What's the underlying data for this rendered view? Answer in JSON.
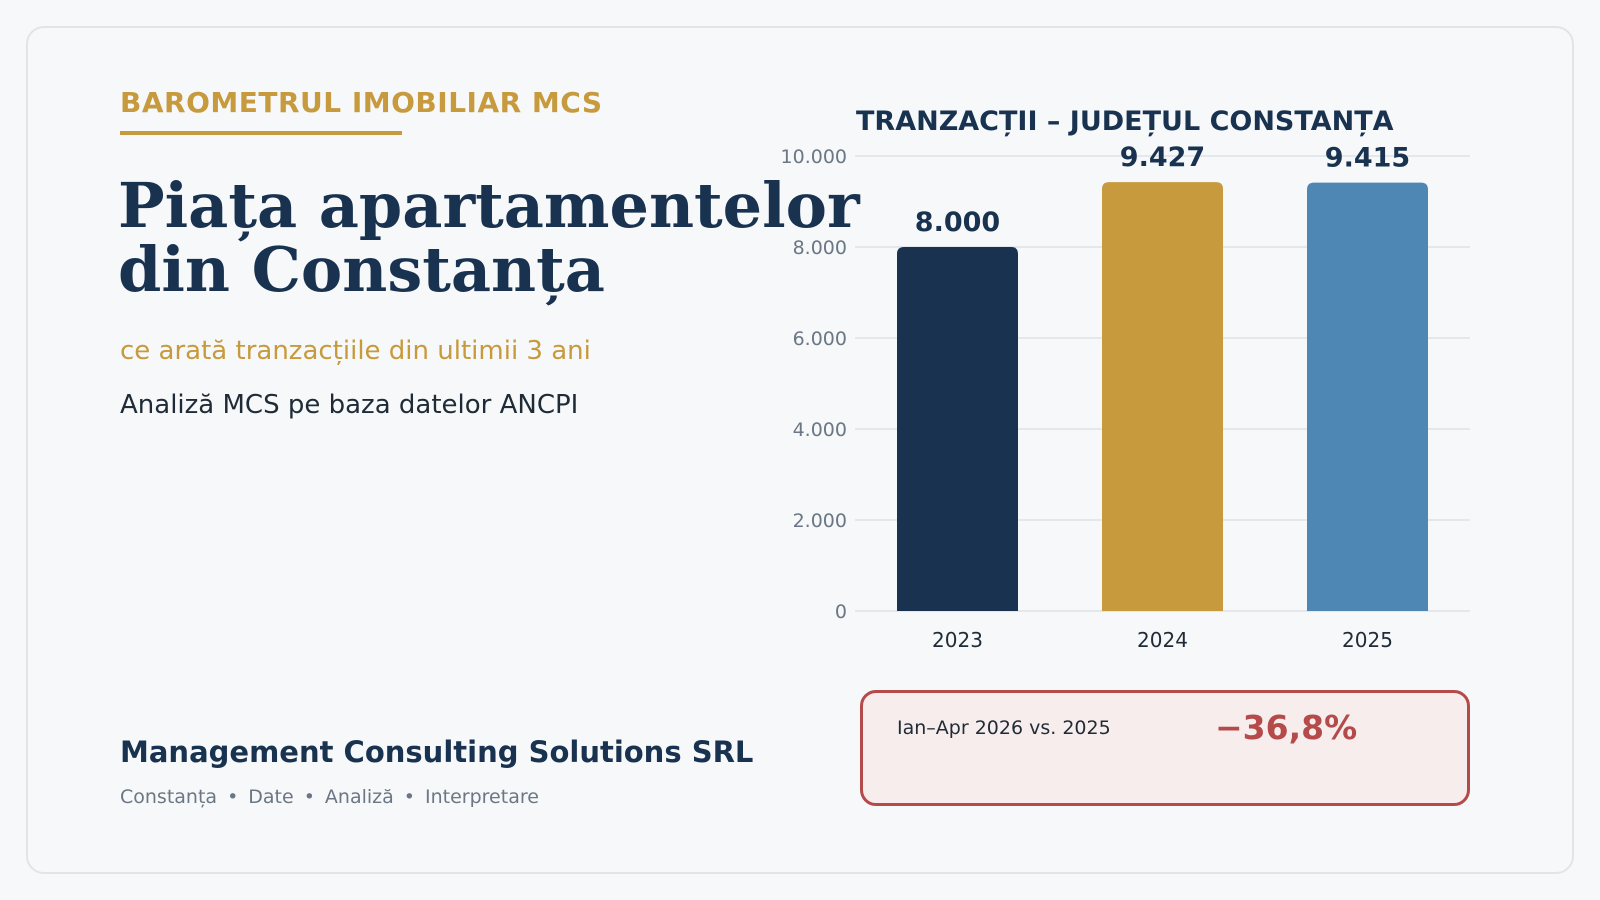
{
  "header": {
    "brand_label": "BAROMETRUL IMOBILIAR MCS",
    "title_line1": "Piața apartamentelor",
    "title_line2": "din Constanța",
    "subtitle": "ce arată tranzacțiile din ultimii 3 ani",
    "source": "Analiză MCS pe baza datelor ANCPI"
  },
  "footer": {
    "company": "Management Consulting Solutions SRL",
    "tags": [
      "Constanța",
      "Date",
      "Analiză",
      "Interpretare"
    ],
    "separator": "•"
  },
  "callout": {
    "label": "Ian–Apr 2026 vs. 2025",
    "value": "−36,8%"
  },
  "colors": {
    "navy": "#18324f",
    "gold": "#c79a3d",
    "blue": "#4e86b4",
    "red": "#b44a4a",
    "grid": "#dde2e7",
    "axis_text": "#6b7784"
  },
  "chart_data": {
    "type": "bar",
    "title": "TRANZACȚII – JUDEȚUL CONSTANȚA",
    "categories": [
      "2023",
      "2024",
      "2025"
    ],
    "values": [
      8000,
      9427,
      9415
    ],
    "value_labels": [
      "8.000",
      "9.427",
      "9.415"
    ],
    "bar_colors": [
      "#18324f",
      "#c79a3d",
      "#4e86b4"
    ],
    "ylim": [
      0,
      10000
    ],
    "yticks": [
      0,
      2000,
      4000,
      6000,
      8000,
      10000
    ],
    "ytick_labels": [
      "0",
      "2.000",
      "4.000",
      "6.000",
      "8.000",
      "10.000"
    ],
    "grid": true,
    "xlabel": "",
    "ylabel": ""
  }
}
